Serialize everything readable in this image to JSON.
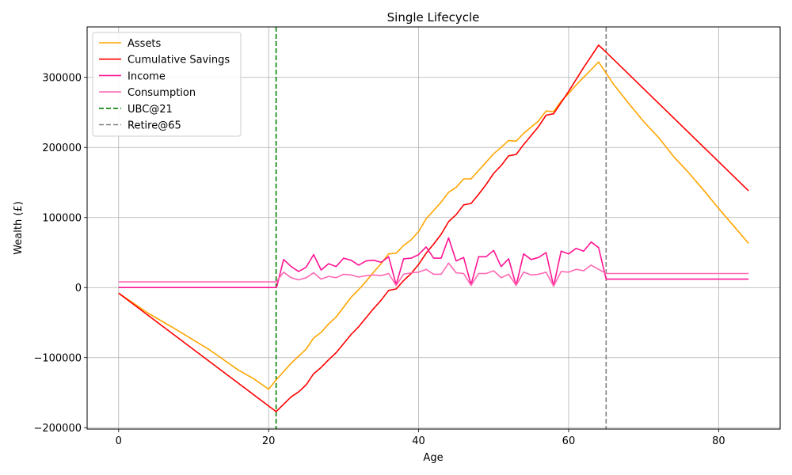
{
  "chart_data": {
    "type": "line",
    "title": "Single Lifecycle",
    "xlabel": "Age",
    "ylabel": "Wealth (£)",
    "xlim": [
      -4.2,
      88.2
    ],
    "ylim": [
      -202000,
      372000
    ],
    "xticks": [
      0,
      20,
      40,
      60,
      80
    ],
    "xtick_labels": [
      "0",
      "20",
      "40",
      "60",
      "80"
    ],
    "yticks": [
      -200000,
      -100000,
      0,
      100000,
      200000,
      300000
    ],
    "ytick_labels": [
      "−200000",
      "−100000",
      "0",
      "100000",
      "200000",
      "300000"
    ],
    "grid": true,
    "legend_position": "top-left",
    "series": [
      {
        "name": "Assets",
        "color": "#ffa500",
        "style": "solid",
        "points": [
          [
            0,
            -8000
          ],
          [
            4,
            -37000
          ],
          [
            8,
            -62000
          ],
          [
            12,
            -88000
          ],
          [
            16,
            -118000
          ],
          [
            18,
            -130000
          ],
          [
            20,
            -145000
          ],
          [
            21,
            -132000
          ],
          [
            23,
            -108000
          ],
          [
            24,
            -98000
          ],
          [
            25,
            -88000
          ],
          [
            26,
            -72000
          ],
          [
            27,
            -64000
          ],
          [
            28,
            -52000
          ],
          [
            29,
            -42000
          ],
          [
            30,
            -28000
          ],
          [
            31,
            -14000
          ],
          [
            32,
            -3000
          ],
          [
            33,
            9000
          ],
          [
            34,
            22000
          ],
          [
            35,
            34000
          ],
          [
            36,
            48000
          ],
          [
            37,
            49000
          ],
          [
            38,
            60000
          ],
          [
            39,
            68000
          ],
          [
            40,
            80000
          ],
          [
            41,
            98000
          ],
          [
            42,
            110000
          ],
          [
            43,
            122000
          ],
          [
            44,
            136000
          ],
          [
            45,
            143000
          ],
          [
            46,
            155000
          ],
          [
            47,
            155000
          ],
          [
            48,
            167000
          ],
          [
            49,
            179000
          ],
          [
            50,
            191000
          ],
          [
            51,
            200000
          ],
          [
            52,
            210000
          ],
          [
            53,
            209000
          ],
          [
            54,
            220000
          ],
          [
            55,
            229000
          ],
          [
            56,
            238000
          ],
          [
            57,
            252000
          ],
          [
            58,
            251000
          ],
          [
            59,
            266000
          ],
          [
            60,
            277000
          ],
          [
            61,
            289000
          ],
          [
            62,
            300000
          ],
          [
            63,
            311000
          ],
          [
            64,
            322000
          ],
          [
            65,
            306000
          ],
          [
            66,
            290000
          ],
          [
            68,
            263000
          ],
          [
            70,
            237000
          ],
          [
            72,
            214000
          ],
          [
            74,
            187000
          ],
          [
            76,
            164000
          ],
          [
            78,
            139000
          ],
          [
            80,
            113000
          ],
          [
            82,
            88000
          ],
          [
            84,
            63000
          ]
        ]
      },
      {
        "name": "Cumulative Savings",
        "color": "#ff0000",
        "style": "solid",
        "points": [
          [
            0,
            -8000
          ],
          [
            21,
            -177000
          ],
          [
            23,
            -156000
          ],
          [
            24,
            -149000
          ],
          [
            25,
            -139000
          ],
          [
            26,
            -123000
          ],
          [
            27,
            -114000
          ],
          [
            28,
            -103000
          ],
          [
            29,
            -93000
          ],
          [
            30,
            -80000
          ],
          [
            31,
            -67000
          ],
          [
            32,
            -56000
          ],
          [
            33,
            -43000
          ],
          [
            34,
            -30000
          ],
          [
            35,
            -18000
          ],
          [
            36,
            -4000
          ],
          [
            37,
            -2000
          ],
          [
            38,
            10000
          ],
          [
            39,
            20000
          ],
          [
            40,
            33000
          ],
          [
            41,
            49000
          ],
          [
            42,
            62000
          ],
          [
            43,
            76000
          ],
          [
            44,
            94000
          ],
          [
            45,
            104000
          ],
          [
            46,
            118000
          ],
          [
            47,
            120000
          ],
          [
            48,
            133000
          ],
          [
            49,
            147000
          ],
          [
            50,
            163000
          ],
          [
            51,
            174000
          ],
          [
            52,
            188000
          ],
          [
            53,
            190000
          ],
          [
            54,
            204000
          ],
          [
            55,
            217000
          ],
          [
            56,
            230000
          ],
          [
            57,
            246000
          ],
          [
            58,
            248000
          ],
          [
            59,
            264000
          ],
          [
            60,
            280000
          ],
          [
            61,
            297000
          ],
          [
            62,
            314000
          ],
          [
            63,
            330000
          ],
          [
            64,
            346000
          ],
          [
            65,
            336000
          ],
          [
            84,
            138000
          ]
        ]
      },
      {
        "name": "Income",
        "color": "#ff1493",
        "style": "solid",
        "points": [
          [
            0,
            0
          ],
          [
            21,
            0
          ],
          [
            21.1,
            2000
          ],
          [
            22,
            40000
          ],
          [
            23,
            30000
          ],
          [
            24,
            23000
          ],
          [
            25,
            29000
          ],
          [
            26,
            47000
          ],
          [
            27,
            25000
          ],
          [
            28,
            34000
          ],
          [
            29,
            30000
          ],
          [
            30,
            42000
          ],
          [
            31,
            39000
          ],
          [
            32,
            32000
          ],
          [
            33,
            38000
          ],
          [
            34,
            39000
          ],
          [
            35,
            36000
          ],
          [
            36,
            44000
          ],
          [
            37,
            4000
          ],
          [
            38,
            41000
          ],
          [
            39,
            42000
          ],
          [
            40,
            47000
          ],
          [
            41,
            58000
          ],
          [
            42,
            42000
          ],
          [
            43,
            42000
          ],
          [
            44,
            71000
          ],
          [
            45,
            38000
          ],
          [
            46,
            43000
          ],
          [
            47,
            4000
          ],
          [
            48,
            44000
          ],
          [
            49,
            44000
          ],
          [
            50,
            53000
          ],
          [
            51,
            30000
          ],
          [
            52,
            41000
          ],
          [
            53,
            3000
          ],
          [
            54,
            48000
          ],
          [
            55,
            40000
          ],
          [
            56,
            43000
          ],
          [
            57,
            50000
          ],
          [
            58,
            2000
          ],
          [
            59,
            52000
          ],
          [
            60,
            48000
          ],
          [
            61,
            56000
          ],
          [
            62,
            52000
          ],
          [
            63,
            65000
          ],
          [
            64,
            57000
          ],
          [
            65,
            12000
          ],
          [
            84,
            12000
          ]
        ]
      },
      {
        "name": "Consumption",
        "color": "#ff69b4",
        "style": "solid",
        "points": [
          [
            0,
            8000
          ],
          [
            21,
            8000
          ],
          [
            22,
            22000
          ],
          [
            23,
            14000
          ],
          [
            24,
            11000
          ],
          [
            25,
            14000
          ],
          [
            26,
            21000
          ],
          [
            27,
            12000
          ],
          [
            28,
            16000
          ],
          [
            29,
            14000
          ],
          [
            30,
            19000
          ],
          [
            31,
            18000
          ],
          [
            32,
            15000
          ],
          [
            33,
            17000
          ],
          [
            34,
            18000
          ],
          [
            35,
            17000
          ],
          [
            36,
            20000
          ],
          [
            37,
            3000
          ],
          [
            38,
            19000
          ],
          [
            39,
            21000
          ],
          [
            40,
            22000
          ],
          [
            41,
            26000
          ],
          [
            42,
            19000
          ],
          [
            43,
            19000
          ],
          [
            44,
            35000
          ],
          [
            45,
            21000
          ],
          [
            46,
            20000
          ],
          [
            47,
            3000
          ],
          [
            48,
            20000
          ],
          [
            49,
            20000
          ],
          [
            50,
            24000
          ],
          [
            51,
            14000
          ],
          [
            52,
            19000
          ],
          [
            53,
            3000
          ],
          [
            54,
            22000
          ],
          [
            55,
            18000
          ],
          [
            56,
            19000
          ],
          [
            57,
            22000
          ],
          [
            58,
            2000
          ],
          [
            59,
            23000
          ],
          [
            60,
            22000
          ],
          [
            61,
            26000
          ],
          [
            62,
            24000
          ],
          [
            63,
            32000
          ],
          [
            64,
            26000
          ],
          [
            65,
            20000
          ],
          [
            84,
            20000
          ]
        ]
      }
    ],
    "vlines": [
      {
        "name": "UBC@21",
        "x": 21,
        "color": "#008000",
        "style": "dashed"
      },
      {
        "name": "Retire@65",
        "x": 65,
        "color": "#808080",
        "style": "dashed"
      }
    ]
  }
}
